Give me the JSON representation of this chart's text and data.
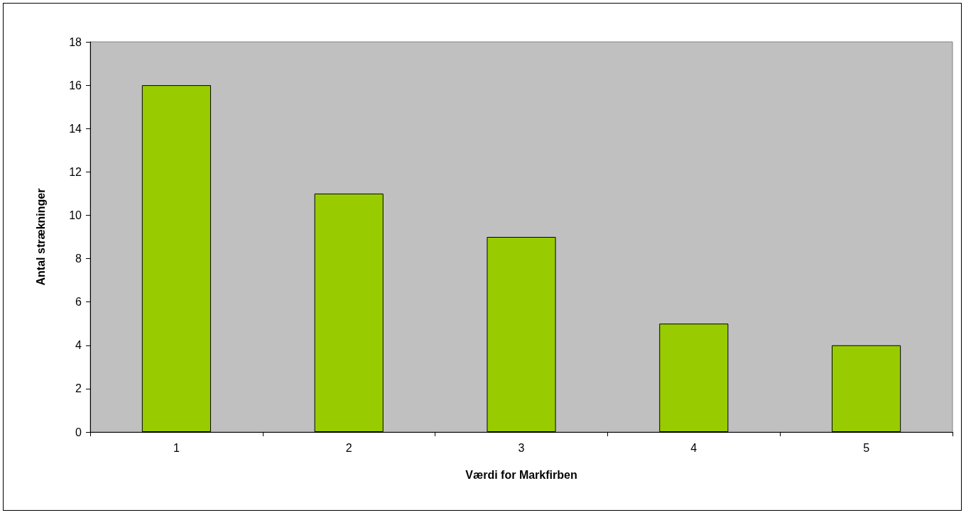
{
  "chart_data": {
    "type": "bar",
    "xlabel": "Værdi for Markfirben",
    "ylabel": "Antal strækninger",
    "categories": [
      "1",
      "2",
      "3",
      "4",
      "5"
    ],
    "values": [
      16,
      11,
      9,
      5,
      4
    ],
    "color": "#99cc00",
    "ylim": [
      0,
      18
    ],
    "yticks": [
      0,
      2,
      4,
      6,
      8,
      10,
      12,
      14,
      16,
      18
    ],
    "grid": false
  }
}
